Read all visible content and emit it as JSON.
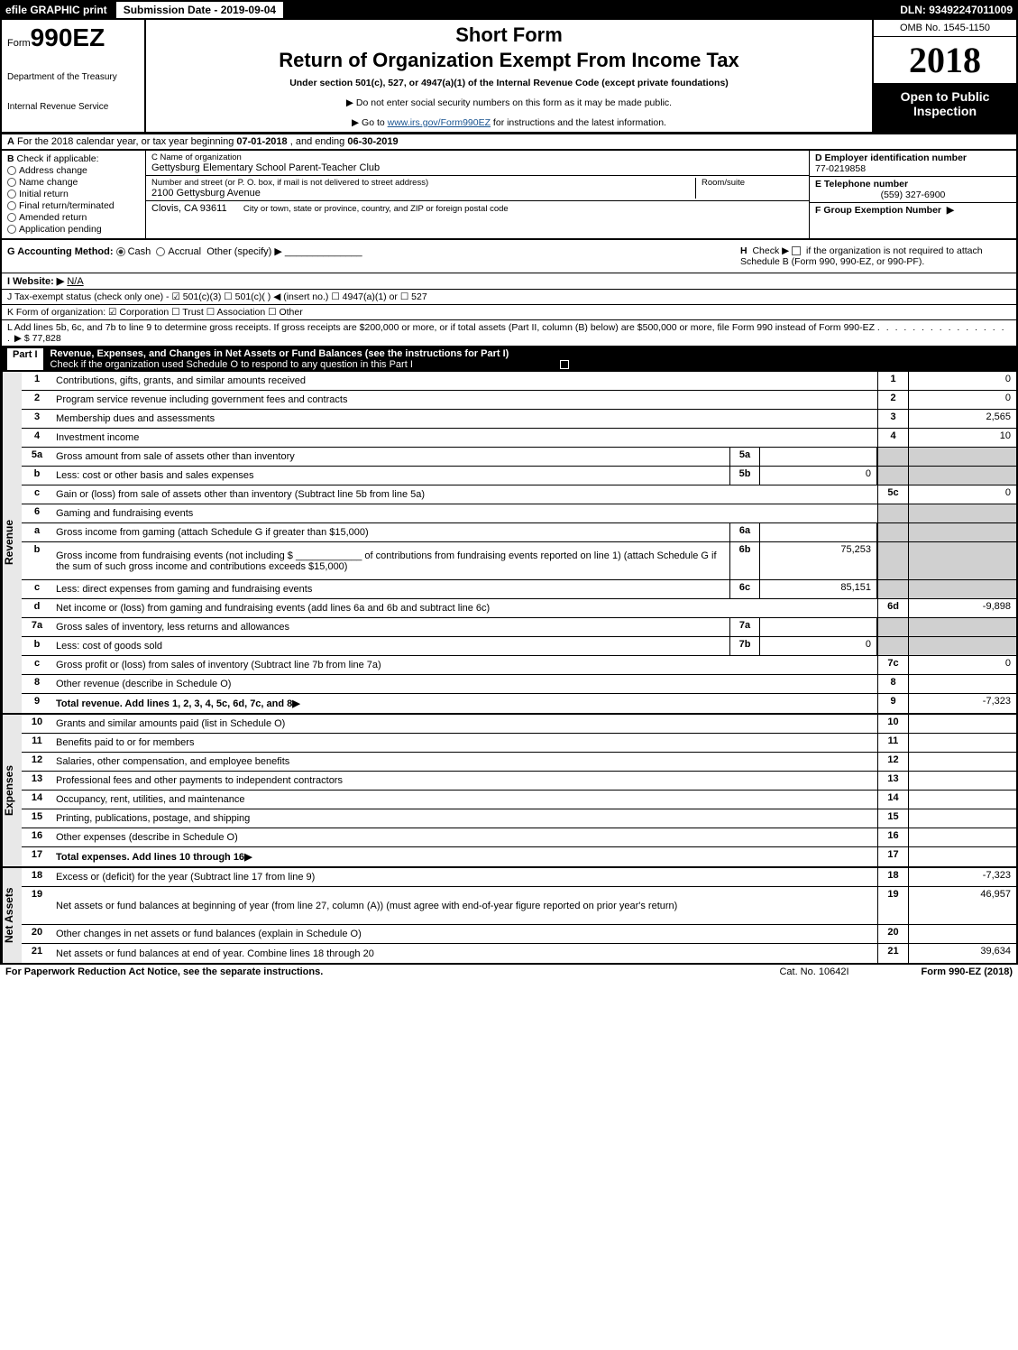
{
  "topbar": {
    "efile": "efile GRAPHIC print",
    "subdate": "Submission Date - 2019-09-04",
    "dln": "DLN: 93492247011009"
  },
  "header": {
    "form_prefix": "Form",
    "form_num": "990EZ",
    "dept1": "Department of the Treasury",
    "dept2": "Internal Revenue Service",
    "short": "Short Form",
    "title": "Return of Organization Exempt From Income Tax",
    "sub": "Under section 501(c), 527, or 4947(a)(1) of the Internal Revenue Code (except private foundations)",
    "note1": "▶ Do not enter social security numbers on this form as it may be made public.",
    "note2_pre": "▶ Go to ",
    "note2_link": "www.irs.gov/Form990EZ",
    "note2_post": " for instructions and the latest information.",
    "omb": "OMB No. 1545-1150",
    "year": "2018",
    "open": "Open to Public Inspection"
  },
  "row_a": {
    "label": "A",
    "text_pre": "For the 2018 calendar year, or tax year beginning ",
    "begin": "07-01-2018",
    "text_mid": ", and ending ",
    "end": "06-30-2019"
  },
  "b": {
    "label": "B",
    "title": "Check if applicable:",
    "items": [
      "Address change",
      "Name change",
      "Initial return",
      "Final return/terminated",
      "Amended return",
      "Application pending"
    ]
  },
  "c": {
    "name_label": "C Name of organization",
    "name": "Gettysburg Elementary School Parent-Teacher Club",
    "street_label": "Number and street (or P. O. box, if mail is not delivered to street address)",
    "street": "2100 Gettysburg Avenue",
    "room_label": "Room/suite",
    "city_label": "City or town, state or province, country, and ZIP or foreign postal code",
    "city": "Clovis, CA  93611"
  },
  "d": {
    "ein_label": "D Employer identification number",
    "ein": "77-0219858",
    "phone_label": "E Telephone number",
    "phone": "(559) 327-6900",
    "group_label": "F Group Exemption Number",
    "group_arrow": "▶"
  },
  "g": {
    "label": "G Accounting Method:",
    "opts": [
      "Cash",
      "Accrual",
      "Other (specify) ▶"
    ]
  },
  "h": {
    "label": "H",
    "text1": "Check ▶",
    "text2": "if the organization is not required to attach Schedule B (Form 990, 990-EZ, or 990-PF)."
  },
  "i": {
    "label": "I Website: ▶",
    "value": "N/A"
  },
  "j": "J Tax-exempt status (check only one) - ☑ 501(c)(3) ☐ 501(c)( ) ◀ (insert no.) ☐ 4947(a)(1) or ☐ 527",
  "k": "K Form of organization: ☑ Corporation  ☐ Trust  ☐ Association  ☐ Other",
  "l": {
    "text": "L Add lines 5b, 6c, and 7b to line 9 to determine gross receipts. If gross receipts are $200,000 or more, or if total assets (Part II, column (B) below) are $500,000 or more, file Form 990 instead of Form 990-EZ",
    "amount": "▶ $ 77,828"
  },
  "part1": {
    "label": "Part I",
    "title": "Revenue, Expenses, and Changes in Net Assets or Fund Balances (see the instructions for Part I)",
    "check_text": "Check if the organization used Schedule O to respond to any question in this Part I"
  },
  "sections": {
    "revenue": "Revenue",
    "expenses": "Expenses",
    "netassets": "Net Assets"
  },
  "lines": [
    {
      "n": "1",
      "d": "Contributions, gifts, grants, and similar amounts received",
      "box": "1",
      "val": "0"
    },
    {
      "n": "2",
      "d": "Program service revenue including government fees and contracts",
      "box": "2",
      "val": "0"
    },
    {
      "n": "3",
      "d": "Membership dues and assessments",
      "box": "3",
      "val": "2,565"
    },
    {
      "n": "4",
      "d": "Investment income",
      "box": "4",
      "val": "10"
    },
    {
      "n": "5a",
      "d": "Gross amount from sale of assets other than inventory",
      "mid": "5a",
      "midval": "",
      "shade": true
    },
    {
      "n": "b",
      "d": "Less: cost or other basis and sales expenses",
      "mid": "5b",
      "midval": "0",
      "shade": true
    },
    {
      "n": "c",
      "d": "Gain or (loss) from sale of assets other than inventory (Subtract line 5b from line 5a)",
      "box": "5c",
      "val": "0"
    },
    {
      "n": "6",
      "d": "Gaming and fundraising events",
      "shade": true
    },
    {
      "n": "a",
      "d": "Gross income from gaming (attach Schedule G if greater than $15,000)",
      "mid": "6a",
      "midval": "",
      "shade": true
    },
    {
      "n": "b",
      "d": "Gross income from fundraising events (not including $ ____________ of contributions from fundraising events reported on line 1) (attach Schedule G if the sum of such gross income and contributions exceeds $15,000)",
      "mid": "6b",
      "midval": "75,253",
      "shade": true,
      "tall": true
    },
    {
      "n": "c",
      "d": "Less: direct expenses from gaming and fundraising events",
      "mid": "6c",
      "midval": "85,151",
      "shade": true
    },
    {
      "n": "d",
      "d": "Net income or (loss) from gaming and fundraising events (add lines 6a and 6b and subtract line 6c)",
      "box": "6d",
      "val": "-9,898"
    },
    {
      "n": "7a",
      "d": "Gross sales of inventory, less returns and allowances",
      "mid": "7a",
      "midval": "",
      "shade": true
    },
    {
      "n": "b",
      "d": "Less: cost of goods sold",
      "mid": "7b",
      "midval": "0",
      "shade": true
    },
    {
      "n": "c",
      "d": "Gross profit or (loss) from sales of inventory (Subtract line 7b from line 7a)",
      "box": "7c",
      "val": "0"
    },
    {
      "n": "8",
      "d": "Other revenue (describe in Schedule O)",
      "box": "8",
      "val": ""
    },
    {
      "n": "9",
      "d": "Total revenue. Add lines 1, 2, 3, 4, 5c, 6d, 7c, and 8",
      "box": "9",
      "val": "-7,323",
      "bold": true,
      "arrow": true
    }
  ],
  "exp_lines": [
    {
      "n": "10",
      "d": "Grants and similar amounts paid (list in Schedule O)",
      "box": "10",
      "val": ""
    },
    {
      "n": "11",
      "d": "Benefits paid to or for members",
      "box": "11",
      "val": ""
    },
    {
      "n": "12",
      "d": "Salaries, other compensation, and employee benefits",
      "box": "12",
      "val": ""
    },
    {
      "n": "13",
      "d": "Professional fees and other payments to independent contractors",
      "box": "13",
      "val": ""
    },
    {
      "n": "14",
      "d": "Occupancy, rent, utilities, and maintenance",
      "box": "14",
      "val": ""
    },
    {
      "n": "15",
      "d": "Printing, publications, postage, and shipping",
      "box": "15",
      "val": ""
    },
    {
      "n": "16",
      "d": "Other expenses (describe in Schedule O)",
      "box": "16",
      "val": ""
    },
    {
      "n": "17",
      "d": "Total expenses. Add lines 10 through 16",
      "box": "17",
      "val": "",
      "bold": true,
      "arrow": true
    }
  ],
  "na_lines": [
    {
      "n": "18",
      "d": "Excess or (deficit) for the year (Subtract line 17 from line 9)",
      "box": "18",
      "val": "-7,323"
    },
    {
      "n": "19",
      "d": "Net assets or fund balances at beginning of year (from line 27, column (A)) (must agree with end-of-year figure reported on prior year's return)",
      "box": "19",
      "val": "46,957",
      "tall": true
    },
    {
      "n": "20",
      "d": "Other changes in net assets or fund balances (explain in Schedule O)",
      "box": "20",
      "val": ""
    },
    {
      "n": "21",
      "d": "Net assets or fund balances at end of year. Combine lines 18 through 20",
      "box": "21",
      "val": "39,634"
    }
  ],
  "footer": {
    "paperwork": "For Paperwork Reduction Act Notice, see the separate instructions.",
    "cat": "Cat. No. 10642I",
    "form": "Form 990-EZ (2018)"
  }
}
